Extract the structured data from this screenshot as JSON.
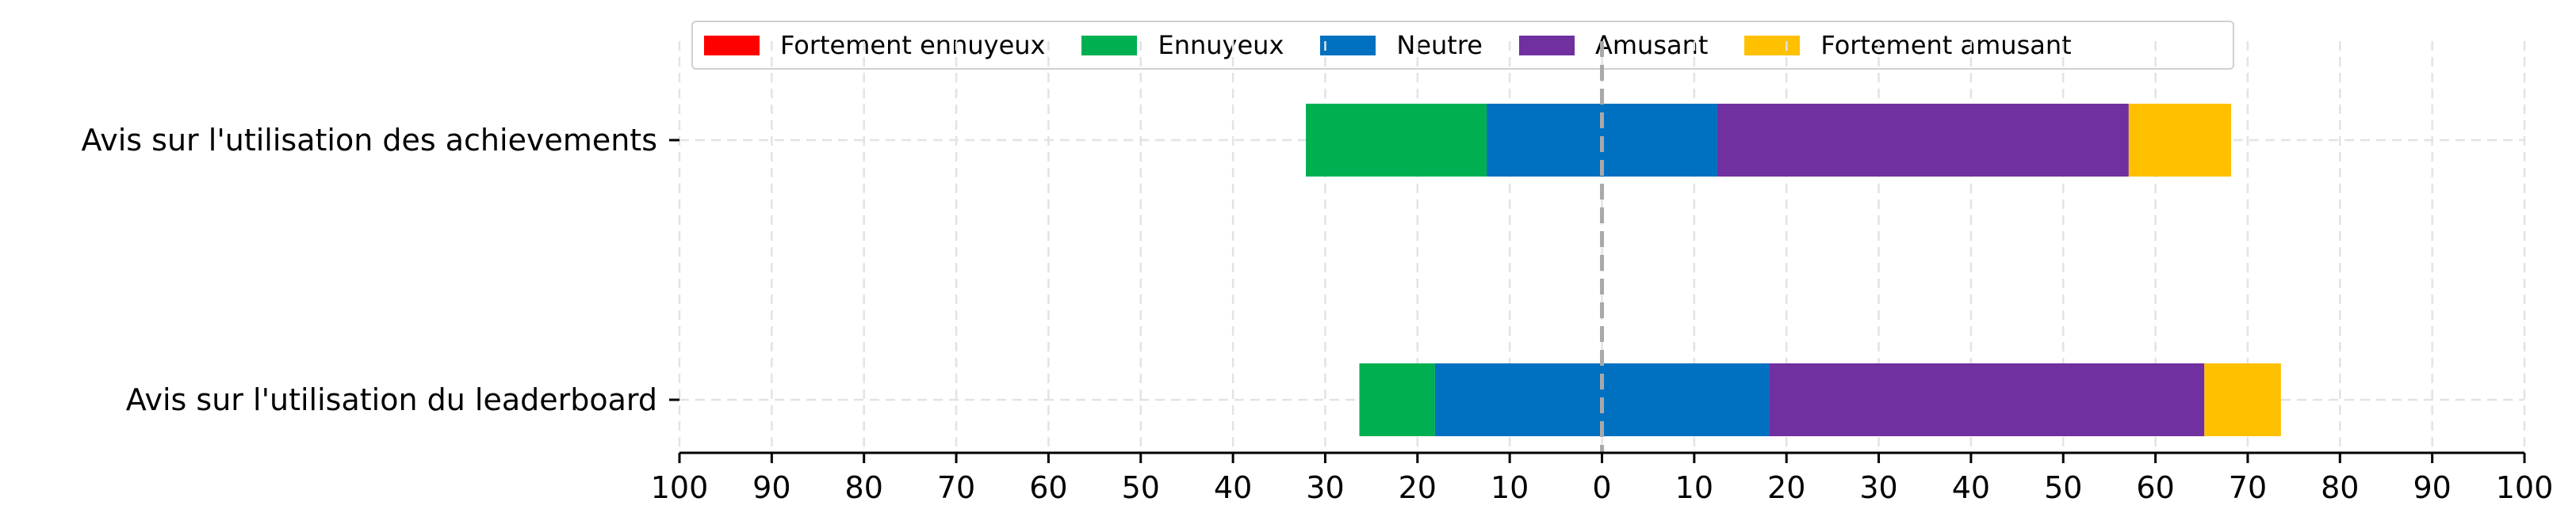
{
  "chart_data": {
    "type": "bar",
    "orientation": "horizontal",
    "stacked": true,
    "diverging": true,
    "categories": [
      "Avis sur l'utilisation des achievements",
      "Avis sur l'utilisation du leaderboard"
    ],
    "series": [
      {
        "name": "Fortement ennuyeux",
        "color": "#FF0000",
        "values": [
          0,
          0
        ]
      },
      {
        "name": "Ennuyeux",
        "color": "#00B050",
        "values": [
          19.6,
          8.2
        ]
      },
      {
        "name": "Neutre",
        "color": "#0070C0",
        "values": [
          25,
          36.2
        ]
      },
      {
        "name": "Amusant",
        "color": "#7030A0",
        "values": [
          44.6,
          47.2
        ]
      },
      {
        "name": "Fortement amusant",
        "color": "#FFC000",
        "values": [
          11.1,
          8.3
        ]
      }
    ],
    "xlim": [
      -100,
      100
    ],
    "xticks": [
      "100",
      "90",
      "80",
      "70",
      "60",
      "50",
      "40",
      "30",
      "20",
      "10",
      "0",
      "10",
      "20",
      "30",
      "40",
      "50",
      "60",
      "70",
      "80",
      "90",
      "100"
    ],
    "title": "",
    "xlabel": "",
    "ylabel": "",
    "grid": "dashed",
    "legend_position": "top"
  }
}
